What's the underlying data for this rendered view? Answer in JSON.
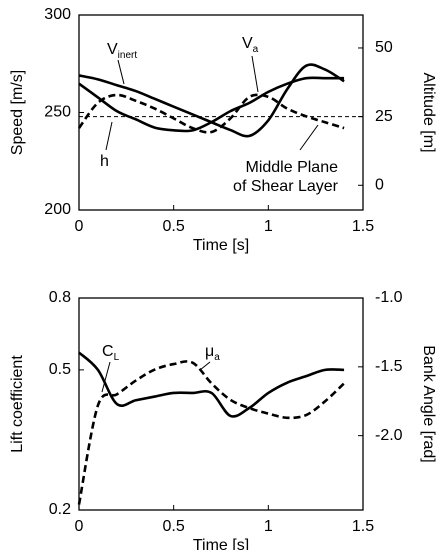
{
  "chart_data": [
    {
      "type": "line",
      "xlabel": "Time [s]",
      "ylabel": "Speed [m/s]",
      "y2label": "Altitude [m]",
      "x": [
        0,
        0.1,
        0.2,
        0.3,
        0.4,
        0.5,
        0.6,
        0.7,
        0.8,
        0.9,
        1.0,
        1.1,
        1.2,
        1.3,
        1.4
      ],
      "xlim": [
        0,
        1.5
      ],
      "xticks": [
        0,
        0.5,
        1,
        1.5
      ],
      "ylim": [
        200,
        300
      ],
      "yticks": [
        200,
        250,
        300
      ],
      "y2lim": [
        -9,
        62
      ],
      "y2ticks": [
        0,
        25,
        50
      ],
      "series": [
        {
          "name": "V",
          "subscript": "inert",
          "color": "#000000",
          "dash": false,
          "values": [
            269,
            267,
            264,
            261,
            257,
            253,
            249,
            245,
            241,
            238,
            246,
            262,
            274,
            272,
            266
          ]
        },
        {
          "name": "V",
          "subscript": "a",
          "color": "#000000",
          "dash": true,
          "values": [
            242,
            255,
            259,
            256,
            252,
            247,
            242,
            240,
            247,
            258,
            258,
            252,
            248,
            245,
            242
          ]
        },
        {
          "name": "h",
          "color": "#000000",
          "dash": false,
          "axis": "y2",
          "values": [
            37,
            32,
            27,
            24,
            21,
            20,
            20,
            23,
            27,
            30,
            34,
            37,
            39,
            39,
            39
          ]
        }
      ],
      "reference_line": {
        "value": 25,
        "axis": "y2",
        "text": [
          "Middle Plane",
          "of Shear Layer"
        ]
      }
    },
    {
      "type": "line",
      "xlabel": "Time [s]",
      "ylabel": "Lift coefficient",
      "y2label": "Bank Angle [rad]",
      "x": [
        0,
        0.1,
        0.2,
        0.3,
        0.4,
        0.5,
        0.6,
        0.7,
        0.8,
        0.9,
        1.0,
        1.1,
        1.2,
        1.3,
        1.4
      ],
      "xlim": [
        0,
        1.5
      ],
      "xticks": [
        0,
        0.5,
        1,
        1.5
      ],
      "ylim": [
        0.2,
        0.8
      ],
      "yticks": [
        0.2,
        0.5,
        0.8
      ],
      "ylog": true,
      "y2lim": [
        -2.54,
        -1.0
      ],
      "y2ticks": [
        {
          "value": -2,
          "label": "-2.0"
        },
        -1.5,
        {
          "value": -1,
          "label": "-1.0"
        }
      ],
      "series": [
        {
          "name": "C",
          "subscript": "L",
          "color": "#000000",
          "dash": false,
          "values": [
            0.56,
            0.5,
            0.4,
            0.41,
            0.42,
            0.43,
            0.43,
            0.43,
            0.37,
            0.39,
            0.43,
            0.46,
            0.48,
            0.5,
            0.5
          ]
        },
        {
          "name": "μ",
          "subscript": "a",
          "color": "#000000",
          "dash": true,
          "axis": "y2",
          "values": [
            -2.5,
            -1.78,
            -1.7,
            -1.6,
            -1.52,
            -1.48,
            -1.47,
            -1.62,
            -1.74,
            -1.8,
            -1.84,
            -1.87,
            -1.85,
            -1.75,
            -1.62
          ]
        }
      ]
    }
  ]
}
